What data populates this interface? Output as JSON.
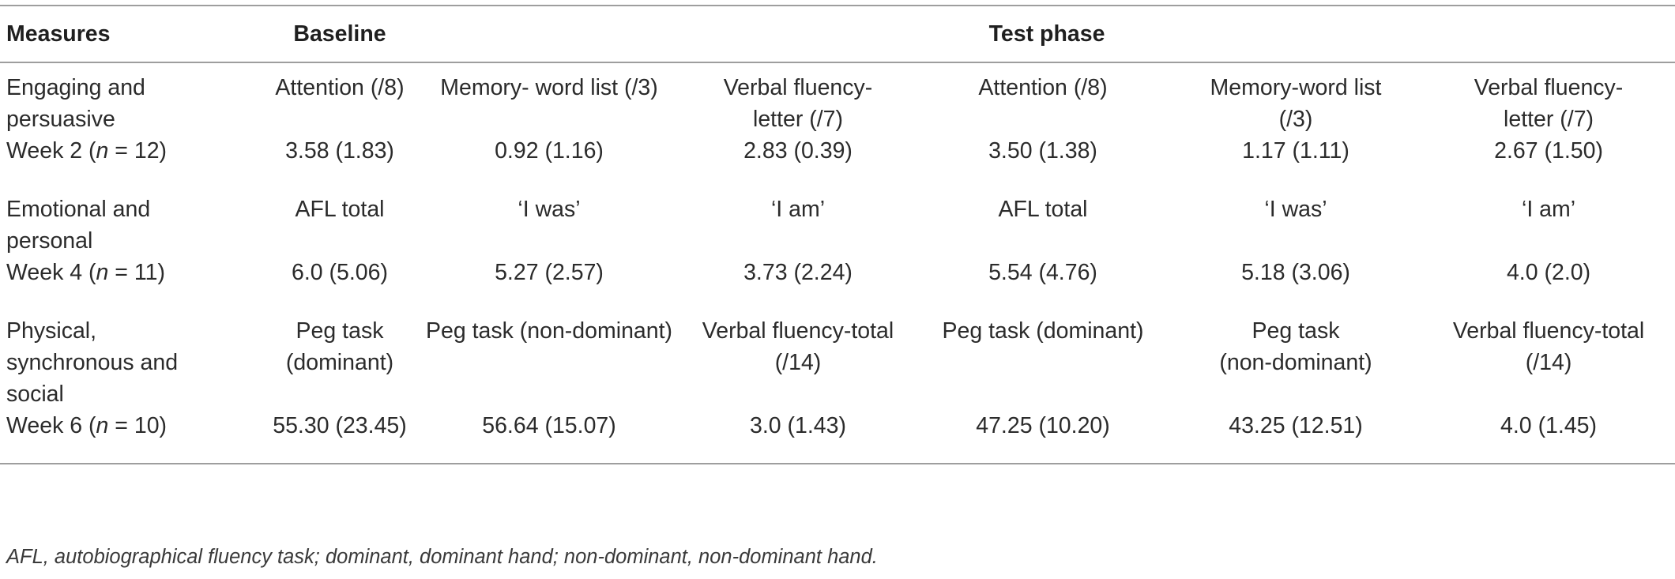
{
  "header": {
    "measures": "Measures",
    "baseline": "Baseline",
    "test_phase": "Test phase"
  },
  "groups": [
    {
      "label_lines": [
        "Engaging and",
        "persuasive"
      ],
      "measures": [
        [
          "Attention (/8)"
        ],
        [
          "Memory- word list (/3)"
        ],
        [
          "Verbal fluency-",
          "letter (/7)"
        ],
        [
          "Attention (/8)"
        ],
        [
          "Memory-word list",
          "(/3)"
        ],
        [
          "Verbal fluency-",
          "letter (/7)"
        ]
      ],
      "week": {
        "prefix": "Week 2 (",
        "n": "n",
        "suffix": " = 12)",
        "values": [
          "3.58 (1.83)",
          "0.92 (1.16)",
          "2.83 (0.39)",
          "3.50 (1.38)",
          "1.17 (1.11)",
          "2.67 (1.50)"
        ]
      }
    },
    {
      "label_lines": [
        "Emotional and",
        "personal"
      ],
      "measures": [
        [
          "AFL total"
        ],
        [
          "‘I was’"
        ],
        [
          "‘I am’"
        ],
        [
          "AFL total"
        ],
        [
          "‘I was’"
        ],
        [
          "‘I am’"
        ]
      ],
      "week": {
        "prefix": "Week 4 (",
        "n": "n",
        "suffix": " = 11)",
        "values": [
          "6.0 (5.06)",
          "5.27 (2.57)",
          "3.73 (2.24)",
          "5.54 (4.76)",
          "5.18 (3.06)",
          "4.0 (2.0)"
        ]
      }
    },
    {
      "label_lines": [
        "Physical,",
        "synchronous and",
        "social"
      ],
      "measures": [
        [
          "Peg task (dominant)"
        ],
        [
          "Peg task (non-dominant)"
        ],
        [
          "Verbal fluency-total",
          "(/14)"
        ],
        [
          "Peg task (dominant)"
        ],
        [
          "Peg task",
          "(non-dominant)"
        ],
        [
          "Verbal fluency-total",
          "(/14)"
        ]
      ],
      "week": {
        "prefix": "Week 6 (",
        "n": "n",
        "suffix": " = 10)",
        "values": [
          "55.30 (23.45)",
          "56.64 (15.07)",
          "3.0 (1.43)",
          "47.25 (10.20)",
          "43.25 (12.51)",
          "4.0 (1.45)"
        ]
      }
    }
  ],
  "footnote": "AFL, autobiographical fluency task; dominant, dominant hand; non-dominant, non-dominant hand."
}
